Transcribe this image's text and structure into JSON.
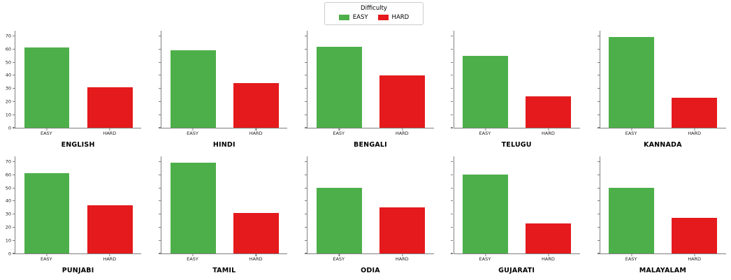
{
  "chart_data": {
    "type": "bar",
    "layout": "2 rows x 5 columns of facets",
    "grid": false,
    "legend": {
      "title": "Difficulty",
      "entries": [
        "EASY",
        "HARD"
      ],
      "position": "top center"
    },
    "categories": [
      "EASY",
      "HARD"
    ],
    "colors": {
      "EASY": "#4daf4a",
      "HARD": "#e41a1c"
    },
    "axis_color": "#7f7f7f",
    "yticks": [
      0,
      10,
      20,
      30,
      40,
      50,
      60,
      70
    ],
    "ylim": [
      0,
      74
    ],
    "facets": [
      {
        "title": "ENGLISH",
        "values": [
          61,
          31
        ]
      },
      {
        "title": "HINDI",
        "values": [
          59,
          34
        ]
      },
      {
        "title": "BENGALI",
        "values": [
          62,
          40
        ]
      },
      {
        "title": "TELUGU",
        "values": [
          55,
          24
        ]
      },
      {
        "title": "KANNADA",
        "values": [
          69,
          23
        ]
      },
      {
        "title": "PUNJABI",
        "values": [
          61,
          37
        ]
      },
      {
        "title": "TAMIL",
        "values": [
          69,
          31
        ]
      },
      {
        "title": "ODIA",
        "values": [
          50,
          35
        ]
      },
      {
        "title": "GUJARATI",
        "values": [
          60,
          23
        ]
      },
      {
        "title": "MALAYALAM",
        "values": [
          50,
          27
        ]
      }
    ]
  }
}
